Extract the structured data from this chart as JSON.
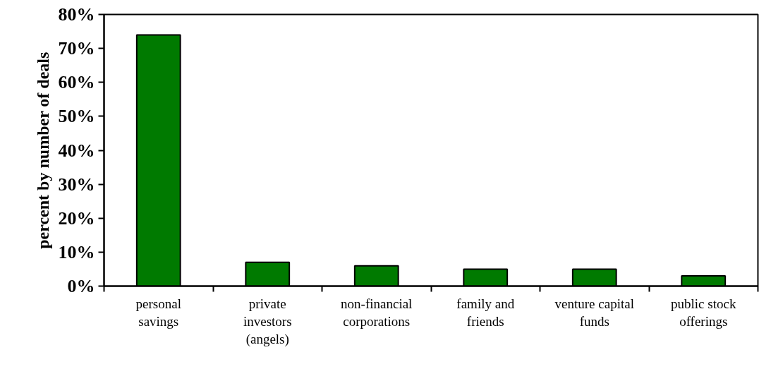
{
  "chart_data": {
    "type": "bar",
    "ylabel": "percent by number of deals",
    "categories": [
      "personal savings",
      "private investors (angels)",
      "non-financial corporations",
      "family and friends",
      "venture capital funds",
      "public stock offerings"
    ],
    "values": [
      74,
      7,
      6,
      5,
      5,
      3
    ],
    "color": "#007a00",
    "ylim": [
      0,
      80
    ],
    "yticks": [
      {
        "value": 0,
        "label": "0%"
      },
      {
        "value": 10,
        "label": "10%"
      },
      {
        "value": 20,
        "label": "20%"
      },
      {
        "value": 30,
        "label": "30%"
      },
      {
        "value": 40,
        "label": "40%"
      },
      {
        "value": 50,
        "label": "50%"
      },
      {
        "value": 60,
        "label": "60%"
      },
      {
        "value": 70,
        "label": "70%"
      },
      {
        "value": 80,
        "label": "80%"
      }
    ],
    "grid": false
  }
}
